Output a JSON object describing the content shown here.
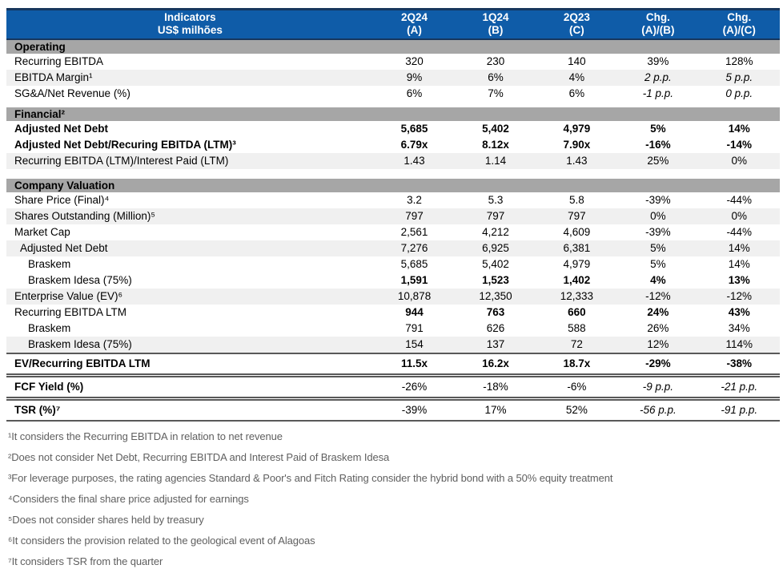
{
  "colors": {
    "blue": "#0F5CA8",
    "navy": "#17365D",
    "band": "#A6A6A6",
    "stripe": "#F0F0F0",
    "line": "#595959",
    "fn": "#5F5F5F"
  },
  "table": {
    "header": {
      "title_line1": "Indicators",
      "title_line2": "US$ milhões",
      "columns": [
        {
          "line1": "2Q24",
          "line2": "(A)"
        },
        {
          "line1": "1Q24",
          "line2": "(B)"
        },
        {
          "line1": "2Q23",
          "line2": "(C)"
        },
        {
          "line1": "Chg.",
          "line2": "(A)/(B)"
        },
        {
          "line1": "Chg.",
          "line2": "(A)/(C)"
        }
      ]
    },
    "sections": [
      {
        "title": "Operating",
        "rows": [
          {
            "label": "Recurring EBITDA",
            "values": [
              "320",
              "230",
              "140",
              "39%",
              "128%"
            ]
          },
          {
            "label": "EBITDA Margin¹",
            "values": [
              "9%",
              "6%",
              "4%",
              "2 p.p.",
              "5 p.p."
            ],
            "shaded": true
          },
          {
            "label": "SG&A/Net Revenue (%)",
            "values": [
              "6%",
              "7%",
              "6%",
              "-1 p.p.",
              "0 p.p."
            ]
          }
        ]
      },
      {
        "title": "Financial²",
        "gap_before": "small",
        "rows": [
          {
            "label": "Adjusted Net Debt",
            "values": [
              "5,685",
              "5,402",
              "4,979",
              "5%",
              "14%"
            ],
            "bold": true
          },
          {
            "label": "Adjusted Net Debt/Recuring EBITDA (LTM)³",
            "values": [
              "6.79x",
              "8.12x",
              "7.90x",
              "-16%",
              "-14%"
            ],
            "bold": true
          },
          {
            "label": "Recurring EBITDA (LTM)/Interest Paid (LTM)",
            "values": [
              "1.43",
              "1.14",
              "1.43",
              "25%",
              "0%"
            ],
            "shaded": true
          }
        ]
      },
      {
        "title": "Company Valuation",
        "gap_before": "big",
        "rows": [
          {
            "label": "Share Price (Final)⁴",
            "values": [
              "3.2",
              "5.3",
              "5.8",
              "-39%",
              "-44%"
            ]
          },
          {
            "label": "Shares Outstanding (Million)⁵",
            "values": [
              "797",
              "797",
              "797",
              "0%",
              "0%"
            ],
            "shaded": true
          },
          {
            "label": "Market Cap",
            "values": [
              "2,561",
              "4,212",
              "4,609",
              "-39%",
              "-44%"
            ]
          },
          {
            "label": "Adjusted Net Debt",
            "indent": 1,
            "values": [
              "7,276",
              "6,925",
              "6,381",
              "5%",
              "14%"
            ],
            "shaded": true
          },
          {
            "label": "Braskem",
            "indent": 2,
            "values": [
              "5,685",
              "5,402",
              "4,979",
              "5%",
              "14%"
            ]
          },
          {
            "label": "Braskem Idesa (75%)",
            "indent": 2,
            "values": [
              "1,591",
              "1,523",
              "1,402",
              "4%",
              "13%"
            ],
            "bold_values": true
          },
          {
            "label": "Enterprise Value (EV)⁶",
            "values": [
              "10,878",
              "12,350",
              "12,333",
              "-12%",
              "-12%"
            ],
            "shaded": true
          },
          {
            "label": "Recurring EBITDA LTM",
            "values": [
              "944",
              "763",
              "660",
              "24%",
              "43%"
            ],
            "bold_values": true
          },
          {
            "label": "Braskem",
            "indent": 2,
            "values": [
              "791",
              "626",
              "588",
              "26%",
              "34%"
            ]
          },
          {
            "label": "Braskem Idesa (75%)",
            "indent": 2,
            "values": [
              "154",
              "137",
              "72",
              "12%",
              "114%"
            ],
            "shaded": true
          },
          {
            "label": "EV/Recurring EBITDA LTM",
            "values": [
              "11.5x",
              "16.2x",
              "18.7x",
              "-29%",
              "-38%"
            ],
            "bold": true,
            "tall": true,
            "sep_before": "single",
            "sep_after": "double"
          },
          {
            "label": "FCF Yield (%)",
            "values": [
              "-26%",
              "-18%",
              "-6%",
              "-9 p.p.",
              "-21 p.p."
            ],
            "bold_label": true,
            "tall": true,
            "sep_after": "double"
          },
          {
            "label": "TSR (%)⁷",
            "values": [
              "-39%",
              "17%",
              "52%",
              "-56 p.p.",
              "-91 p.p."
            ],
            "bold_label": true,
            "tall": true,
            "sep_after": "single"
          }
        ]
      }
    ]
  },
  "footnotes": [
    "¹It considers the Recurring EBITDA in relation to net revenue",
    "²Does not consider Net Debt, Recurring EBITDA and Interest Paid of Braskem Idesa",
    "³For leverage purposes, the rating agencies Standard & Poor's and Fitch Rating consider the hybrid bond with a 50% equity treatment",
    "⁴Considers the final share price adjusted for earnings",
    "⁵Does not consider shares held by treasury",
    "⁶It considers the provision related to the geological event of Alagoas",
    "⁷It considers TSR from the quarter"
  ]
}
